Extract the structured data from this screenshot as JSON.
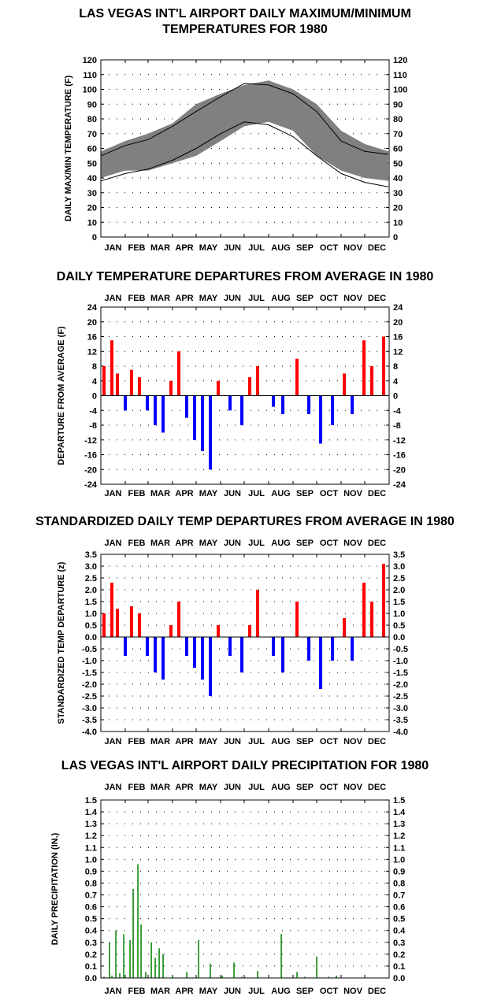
{
  "charts": [
    {
      "title": "LAS VEGAS INT'L AIRPORT DAILY MAXIMUM/MINIMUM\nTEMPERATURES FOR 1980",
      "ylabel": "DAILY MAX/MIN TEMPERATURE (F)"
    },
    {
      "title": "DAILY TEMPERATURE DEPARTURES FROM AVERAGE IN 1980",
      "ylabel": "DEPARTURE FROM AVERAGE (F)"
    },
    {
      "title": "STANDARDIZED DAILY TEMP DEPARTURES FROM AVERAGE IN 1980",
      "ylabel": "STANDARDIZED TEMP DEPARTURE (z)"
    },
    {
      "title": "LAS VEGAS INT'L AIRPORT DAILY PRECIPITATION FOR 1980",
      "ylabel": "DAILY PRECIPITATION (IN.)"
    }
  ],
  "chart_data": [
    {
      "type": "area",
      "title": "LAS VEGAS INT'L AIRPORT DAILY MAXIMUM/MINIMUM TEMPERATURES FOR 1980",
      "ylabel": "DAILY MAX/MIN TEMPERATURE (F)",
      "xlabel": "",
      "ylim": [
        0,
        120
      ],
      "yticks": [
        "0",
        "10",
        "20",
        "30",
        "40",
        "50",
        "60",
        "70",
        "80",
        "90",
        "100",
        "110",
        "120"
      ],
      "months": [
        "JAN",
        "FEB",
        "MAR",
        "APR",
        "MAY",
        "JUN",
        "JUL",
        "AUG",
        "SEP",
        "OCT",
        "NOV",
        "DEC"
      ],
      "grid": "dotted",
      "colors": {
        "band": "#808080",
        "normals": "#000000"
      },
      "x": [
        1,
        32,
        61,
        92,
        122,
        153,
        183,
        214,
        245,
        275,
        306,
        336,
        366
      ],
      "series": [
        {
          "values_max": [
            55,
            62,
            66,
            75,
            85,
            95,
            104,
            103,
            97,
            85,
            65,
            58,
            56
          ]
        },
        {
          "values_min": [
            38,
            43,
            46,
            52,
            60,
            70,
            78,
            76,
            68,
            55,
            43,
            37,
            34
          ]
        },
        {
          "values_daily_max": [
            58,
            65,
            70,
            77,
            90,
            97,
            103,
            106,
            100,
            90,
            72,
            63,
            58
          ]
        },
        {
          "values_daily_min": [
            40,
            45,
            45,
            50,
            55,
            65,
            75,
            78,
            72,
            55,
            45,
            40,
            38
          ]
        }
      ]
    },
    {
      "type": "bar",
      "title": "DAILY TEMPERATURE DEPARTURES FROM AVERAGE IN 1980",
      "ylabel": "DEPARTURE FROM AVERAGE (F)",
      "xlabel": "",
      "ylim": [
        -24,
        24
      ],
      "yticks": [
        "-24",
        "-20",
        "-16",
        "-12",
        "-8",
        "-4",
        "0",
        "4",
        "8",
        "12",
        "16",
        "20",
        "24"
      ],
      "months": [
        "JAN",
        "FEB",
        "MAR",
        "APR",
        "MAY",
        "JUN",
        "JUL",
        "AUG",
        "SEP",
        "OCT",
        "NOV",
        "DEC"
      ],
      "grid": "dotted",
      "colors": {
        "positive": "#ff0000",
        "negative": "#0000ff"
      },
      "x": [
        5,
        15,
        22,
        32,
        40,
        50,
        60,
        70,
        80,
        90,
        100,
        110,
        120,
        130,
        140,
        150,
        165,
        180,
        190,
        200,
        220,
        232,
        250,
        265,
        280,
        295,
        310,
        320,
        335,
        345,
        360
      ],
      "values": [
        8,
        15,
        6,
        -4,
        7,
        5,
        -4,
        -8,
        -10,
        4,
        12,
        -6,
        -12,
        -15,
        -20,
        4,
        -4,
        -8,
        5,
        8,
        -3,
        -5,
        10,
        -5,
        -13,
        -8,
        6,
        -5,
        15,
        8,
        16
      ]
    },
    {
      "type": "bar",
      "title": "STANDARDIZED DAILY TEMP DEPARTURES FROM AVERAGE IN 1980",
      "ylabel": "STANDARDIZED TEMP DEPARTURE (z)",
      "xlabel": "",
      "ylim": [
        -4.0,
        3.5
      ],
      "yticks": [
        "-4.0",
        "-3.5",
        "-3.0",
        "-2.5",
        "-2.0",
        "-1.5",
        "-1.0",
        "-0.5",
        "0.0",
        "0.5",
        "1.0",
        "1.5",
        "2.0",
        "2.5",
        "3.0",
        "3.5"
      ],
      "months": [
        "JAN",
        "FEB",
        "MAR",
        "APR",
        "MAY",
        "JUN",
        "JUL",
        "AUG",
        "SEP",
        "OCT",
        "NOV",
        "DEC"
      ],
      "grid": "dotted",
      "colors": {
        "positive": "#ff0000",
        "negative": "#0000ff"
      },
      "x": [
        5,
        15,
        22,
        32,
        40,
        50,
        60,
        70,
        80,
        90,
        100,
        110,
        120,
        130,
        140,
        150,
        165,
        180,
        190,
        200,
        220,
        232,
        250,
        265,
        280,
        295,
        310,
        320,
        335,
        345,
        360
      ],
      "values": [
        1.0,
        2.3,
        1.2,
        -0.8,
        1.3,
        1.0,
        -0.8,
        -1.5,
        -1.8,
        0.5,
        1.5,
        -0.8,
        -1.3,
        -1.8,
        -2.5,
        0.5,
        -0.8,
        -1.5,
        0.5,
        2.0,
        -0.8,
        -1.5,
        1.5,
        -1.0,
        -2.2,
        -1.0,
        0.8,
        -1.0,
        2.3,
        1.5,
        3.1
      ]
    },
    {
      "type": "bar",
      "title": "LAS VEGAS INT'L AIRPORT DAILY PRECIPITATION FOR 1980",
      "ylabel": "DAILY PRECIPITATION (IN.)",
      "xlabel": "",
      "ylim": [
        0.0,
        1.5
      ],
      "yticks": [
        "0.0",
        "0.1",
        "0.2",
        "0.3",
        "0.4",
        "0.5",
        "0.6",
        "0.7",
        "0.8",
        "0.9",
        "1.0",
        "1.1",
        "1.2",
        "1.3",
        "1.4",
        "1.5"
      ],
      "months": [
        "JAN",
        "FEB",
        "MAR",
        "APR",
        "MAY",
        "JUN",
        "JUL",
        "AUG",
        "SEP",
        "OCT",
        "NOV",
        "DEC"
      ],
      "grid": "dotted",
      "colors": {
        "bar": "#008000"
      },
      "x": [
        5,
        12,
        15,
        20,
        25,
        30,
        32,
        38,
        42,
        48,
        52,
        58,
        65,
        70,
        75,
        80,
        92,
        110,
        125,
        140,
        155,
        170,
        180,
        200,
        230,
        250,
        260,
        275,
        290,
        300
      ],
      "values": [
        0.01,
        0.3,
        0.02,
        0.4,
        0.04,
        0.37,
        0.02,
        0.32,
        0.75,
        0.96,
        0.45,
        0.05,
        0.3,
        0.17,
        0.25,
        0.2,
        0.02,
        0.05,
        0.32,
        0.12,
        0.02,
        0.13,
        0.01,
        0.06,
        0.37,
        0.05,
        0.01,
        0.18,
        0.01,
        0.02
      ]
    }
  ]
}
